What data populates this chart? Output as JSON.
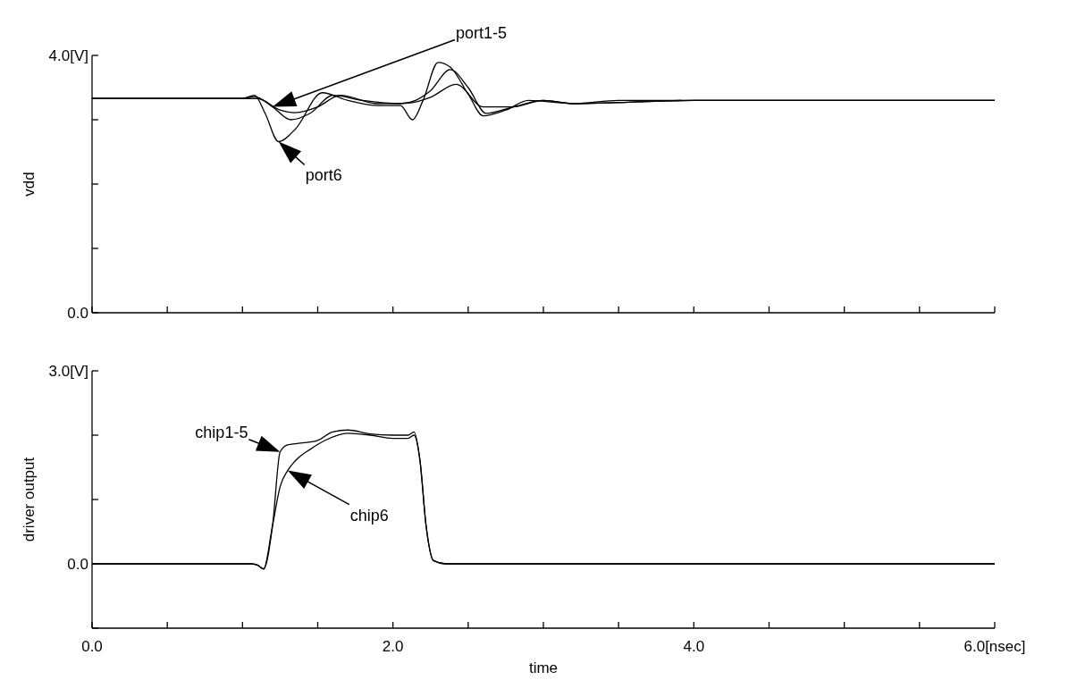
{
  "chart_data": [
    {
      "type": "line",
      "ylabel": "vdd",
      "xlim": [
        0,
        6
      ],
      "ylim": [
        0,
        4
      ],
      "tick_labels": "y",
      "grid": false,
      "marker": "none",
      "line_style": "solid",
      "xticks": [
        {
          "value": 0,
          "label": null
        },
        {
          "value": 0.5,
          "label": null
        },
        {
          "value": 1,
          "label": null
        },
        {
          "value": 1.5,
          "label": null
        },
        {
          "value": 2,
          "label": null
        },
        {
          "value": 2.5,
          "label": null
        },
        {
          "value": 3,
          "label": null
        },
        {
          "value": 3.5,
          "label": null
        },
        {
          "value": 4,
          "label": null
        },
        {
          "value": 4.5,
          "label": null
        },
        {
          "value": 5,
          "label": null
        },
        {
          "value": 5.5,
          "label": null
        },
        {
          "value": 6,
          "label": null
        }
      ],
      "yticks": [
        {
          "value": 0,
          "label": "0.0"
        },
        {
          "value": 1,
          "label": null
        },
        {
          "value": 2,
          "label": null
        },
        {
          "value": 3,
          "label": null
        },
        {
          "value": 4,
          "label": "4.0[V]"
        }
      ],
      "series": [
        {
          "name": "port6",
          "color": "#000000",
          "x": [
            0,
            1.0,
            1.08,
            1.15,
            1.24,
            1.35,
            1.53,
            1.7,
            1.9,
            2.05,
            2.13,
            2.2,
            2.3,
            2.38,
            2.5,
            2.6,
            2.75,
            2.9,
            3.2,
            3.5,
            4,
            5,
            6
          ],
          "values": [
            3.33,
            3.33,
            3.38,
            3.1,
            2.66,
            2.85,
            3.42,
            3.3,
            3.22,
            3.22,
            3.0,
            3.3,
            3.89,
            3.82,
            3.4,
            3.06,
            3.15,
            3.3,
            3.25,
            3.3,
            3.3,
            3.3,
            3.3
          ]
        },
        {
          "name": "port1-5",
          "color": "#000000",
          "x": [
            0,
            1.0,
            1.08,
            1.2,
            1.32,
            1.45,
            1.6,
            1.8,
            2.05,
            2.15,
            2.25,
            2.38,
            2.5,
            2.62,
            2.8,
            3.0,
            3.2,
            4,
            5,
            6
          ],
          "values": [
            3.33,
            3.33,
            3.36,
            3.2,
            3.0,
            3.1,
            3.38,
            3.3,
            3.25,
            3.3,
            3.45,
            3.78,
            3.5,
            3.1,
            3.2,
            3.3,
            3.25,
            3.3,
            3.3,
            3.3
          ]
        },
        {
          "color": "#000000",
          "x": [
            0,
            1.0,
            1.1,
            1.25,
            1.35,
            1.5,
            1.65,
            1.9,
            2.1,
            2.25,
            2.42,
            2.6,
            2.8,
            3.0,
            3.2,
            4,
            5,
            6
          ],
          "values": [
            3.33,
            3.33,
            3.33,
            3.15,
            3.11,
            3.2,
            3.38,
            3.25,
            3.26,
            3.35,
            3.55,
            3.2,
            3.2,
            3.3,
            3.25,
            3.3,
            3.3,
            3.3
          ]
        }
      ]
    },
    {
      "type": "line",
      "ylabel": "driver output",
      "xlabel": "time",
      "xlim": [
        0,
        6
      ],
      "ylim": [
        -1,
        3
      ],
      "grid": false,
      "marker": "none",
      "line_style": "solid",
      "xticks": [
        {
          "value": 0,
          "label": "0.0"
        },
        {
          "value": 0.5,
          "label": null
        },
        {
          "value": 1,
          "label": null
        },
        {
          "value": 1.5,
          "label": null
        },
        {
          "value": 2,
          "label": "2.0"
        },
        {
          "value": 2.5,
          "label": null
        },
        {
          "value": 3,
          "label": null
        },
        {
          "value": 3.5,
          "label": null
        },
        {
          "value": 4,
          "label": "4.0"
        },
        {
          "value": 4.5,
          "label": null
        },
        {
          "value": 5,
          "label": null
        },
        {
          "value": 5.5,
          "label": null
        },
        {
          "value": 6,
          "label": "6.0[nsec]"
        }
      ],
      "yticks": [
        {
          "value": -1,
          "label": null
        },
        {
          "value": 0,
          "label": "0.0"
        },
        {
          "value": 1,
          "label": null
        },
        {
          "value": 2,
          "label": null
        },
        {
          "value": 3,
          "label": "3.0[V]"
        }
      ],
      "series": [
        {
          "name": "chip1-5",
          "color": "#000000",
          "x": [
            0,
            1.05,
            1.1,
            1.14,
            1.2,
            1.25,
            1.3,
            1.4,
            1.5,
            1.6,
            1.7,
            1.85,
            2.0,
            2.1,
            2.14,
            2.18,
            2.22,
            2.27,
            2.35,
            2.5,
            6
          ],
          "values": [
            0,
            0,
            -0.02,
            -0.08,
            0.6,
            1.74,
            1.85,
            1.88,
            1.92,
            2.05,
            2.08,
            2.02,
            2.0,
            2.0,
            2.05,
            1.6,
            0.6,
            0.05,
            0,
            0,
            0
          ]
        },
        {
          "name": "chip6",
          "color": "#000000",
          "x": [
            0,
            1.05,
            1.1,
            1.14,
            1.2,
            1.25,
            1.3,
            1.35,
            1.45,
            1.55,
            1.7,
            1.85,
            2.0,
            2.1,
            2.14,
            2.18,
            2.22,
            2.27,
            2.35,
            2.5,
            6
          ],
          "values": [
            0,
            0,
            -0.02,
            -0.08,
            0.6,
            1.2,
            1.45,
            1.6,
            1.78,
            1.92,
            2.03,
            2.0,
            1.95,
            1.95,
            2.0,
            1.6,
            0.6,
            0.05,
            0,
            0,
            0
          ]
        }
      ]
    }
  ]
}
